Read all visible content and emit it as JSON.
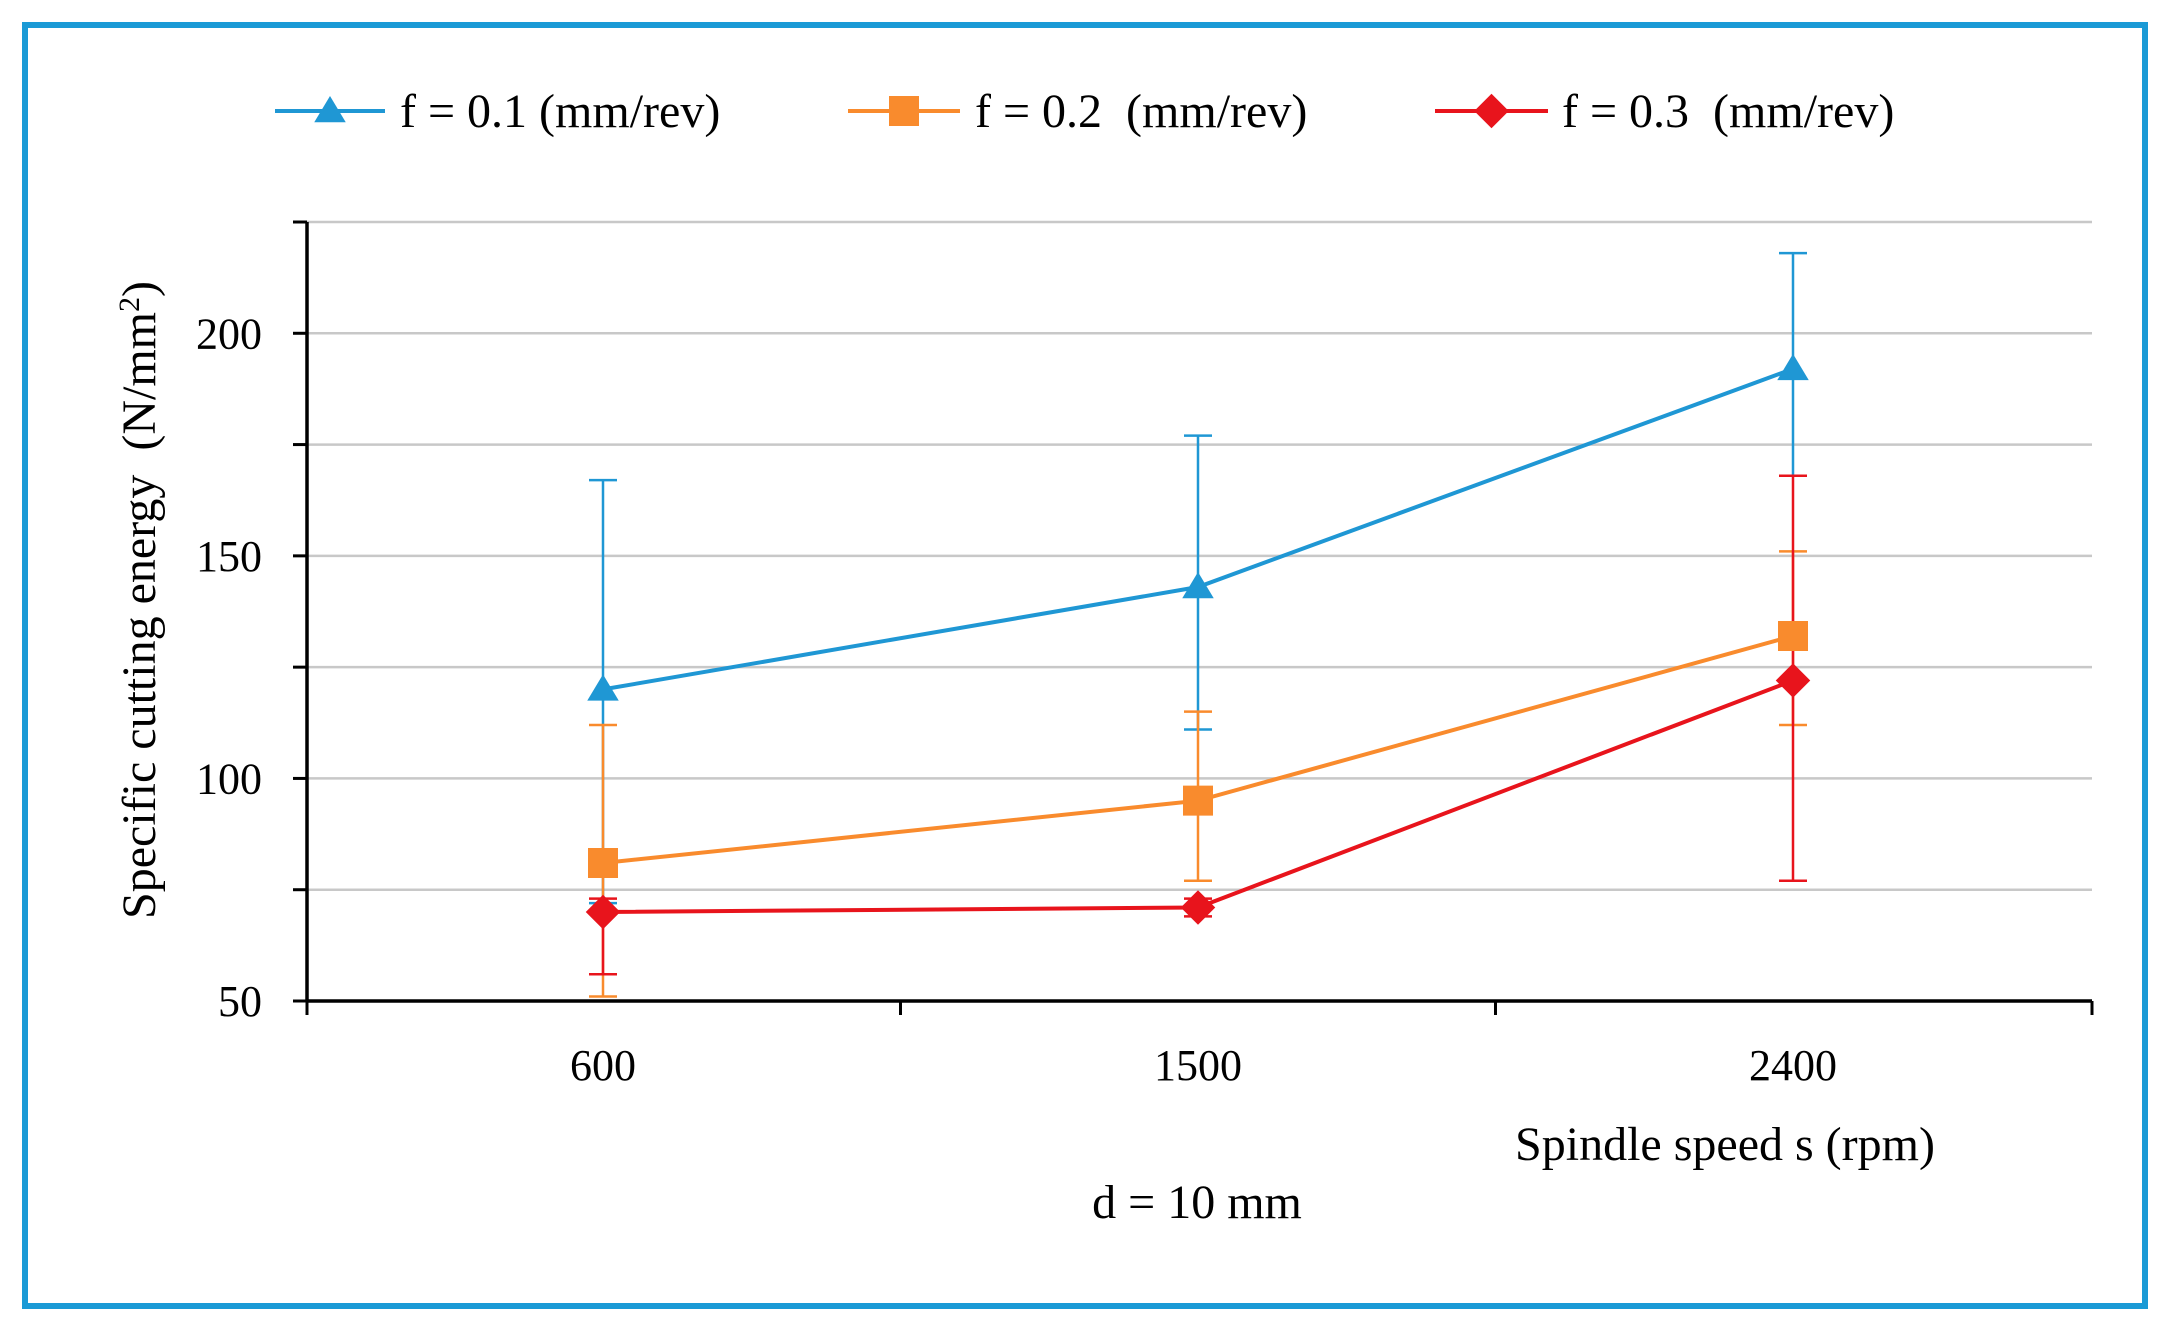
{
  "chart_data": {
    "type": "line",
    "title": "",
    "xlabel": "Spindle speed s (rpm)",
    "ylabel_base": "Specific cutting energy  (N/mm",
    "ylabel_sup": "2",
    "ylabel_end": ")",
    "annotation": "d = 10 mm",
    "categories": [
      "600",
      "1500",
      "2400"
    ],
    "ylim": [
      50,
      225
    ],
    "yticks": [
      50,
      100,
      150,
      200
    ],
    "grid": true,
    "legend_position": "top",
    "series": [
      {
        "name": "f = 0.1 (mm/rev)",
        "color": "#1f97d4",
        "marker": "triangle",
        "values": [
          120,
          143,
          192
        ],
        "err_low": [
          72,
          111,
          168
        ],
        "err_high": [
          167,
          177,
          218
        ]
      },
      {
        "name": "f = 0.2  (mm/rev)",
        "color": "#f98b2d",
        "marker": "square",
        "values": [
          81,
          95,
          132
        ],
        "err_low": [
          51,
          77,
          112
        ],
        "err_high": [
          112,
          115,
          151
        ]
      },
      {
        "name": "f = 0.3  (mm/rev)",
        "color": "#e8141c",
        "marker": "diamond",
        "values": [
          70,
          71,
          122
        ],
        "err_low": [
          56,
          69,
          77
        ],
        "err_high": [
          73,
          73,
          168
        ]
      }
    ]
  }
}
